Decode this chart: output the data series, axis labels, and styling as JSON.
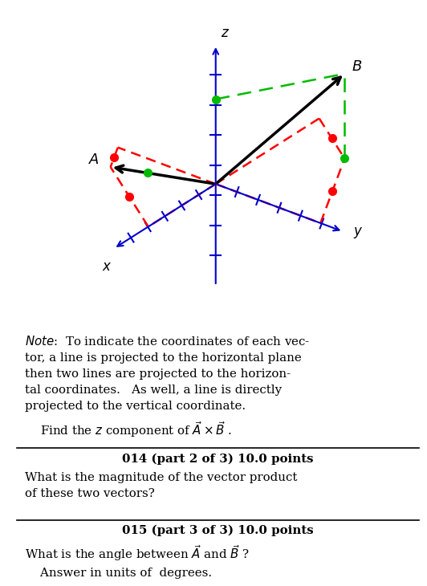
{
  "bg_color": "#ffffff",
  "axis_color": "#0000cc",
  "red_color": "#ff0000",
  "green_color": "#00bb00",
  "black_color": "#000000",
  "note_line1": "Note",
  "note_line1b": ":  To indicate the coordinates of each vec-",
  "note_line2": "tor, a line is projected to the horizontal plane",
  "note_line3": "then two lines are projected to the horizon-",
  "note_line4": "tal coordinates.   As well, a line is directly",
  "note_line5": "projected to the vertical coordinate.",
  "note_line6": "    Find the ",
  "note_line6b": "z",
  "note_line6c": " component of ",
  "section2_header": "014 (part 2 of 3) 10.0 points",
  "section2_body1": "What is the magnitude of the vector product",
  "section2_body2": "of these two vectors?",
  "section3_header": "015 (part 3 of 3) 10.0 points",
  "section3_body1": "What is the angle between ",
  "section3_body2": " and ",
  "section3_body3": " ?",
  "section3_body4": "    Answer in units of  degrees."
}
